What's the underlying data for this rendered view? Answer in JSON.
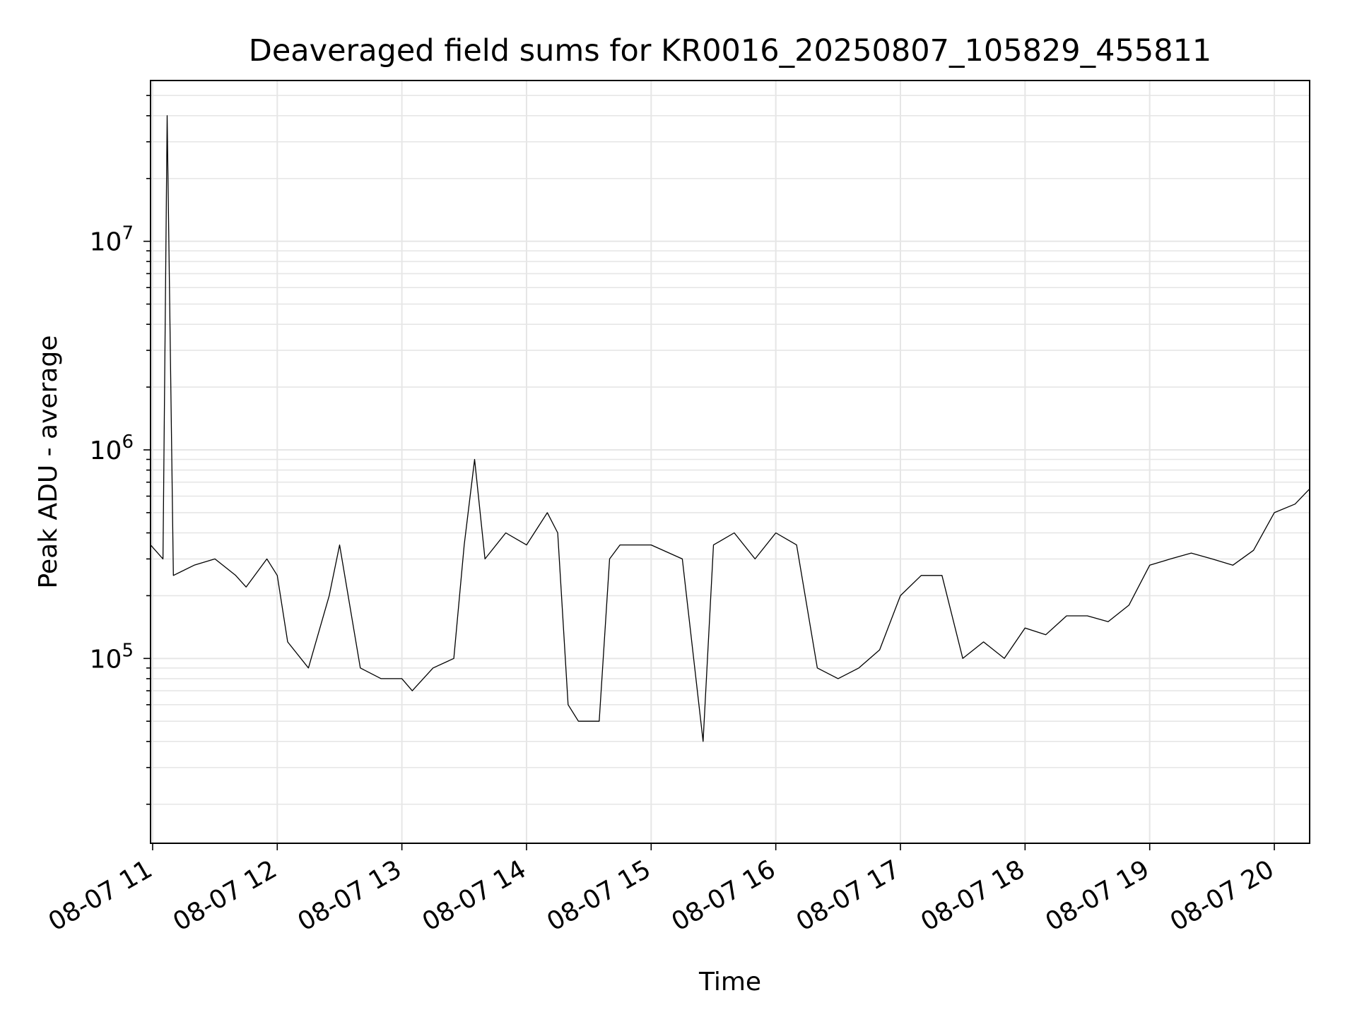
{
  "chart_data": {
    "type": "line",
    "title": "Deaveraged field sums for KR0016_20250807_105829_455811",
    "xlabel": "Time",
    "ylabel": "Peak ADU - average",
    "yscale": "log",
    "ylim": [
      13000,
      59000000
    ],
    "xlim": [
      "08-07 10:59",
      "08-07 20:17"
    ],
    "grid": true,
    "line_color": "#000000",
    "x_ticks": [
      "08-07 11",
      "08-07 12",
      "08-07 13",
      "08-07 14",
      "08-07 15",
      "08-07 16",
      "08-07 17",
      "08-07 18",
      "08-07 19",
      "08-07 20"
    ],
    "y_ticks": [
      {
        "base": "10",
        "exp": "5",
        "value": 100000
      },
      {
        "base": "10",
        "exp": "6",
        "value": 1000000
      },
      {
        "base": "10",
        "exp": "7",
        "value": 10000000
      }
    ],
    "series": [
      {
        "x": [
          "08-07 10:59",
          "08-07 11:05",
          "08-07 11:07",
          "08-07 11:10",
          "08-07 11:20",
          "08-07 11:30",
          "08-07 11:40",
          "08-07 11:45",
          "08-07 11:55",
          "08-07 12:00",
          "08-07 12:05",
          "08-07 12:15",
          "08-07 12:25",
          "08-07 12:30",
          "08-07 12:40",
          "08-07 12:50",
          "08-07 13:00",
          "08-07 13:05",
          "08-07 13:15",
          "08-07 13:25",
          "08-07 13:30",
          "08-07 13:35",
          "08-07 13:40",
          "08-07 13:50",
          "08-07 14:00",
          "08-07 14:10",
          "08-07 14:15",
          "08-07 14:20",
          "08-07 14:25",
          "08-07 14:35",
          "08-07 14:40",
          "08-07 14:45",
          "08-07 15:00",
          "08-07 15:15",
          "08-07 15:25",
          "08-07 15:30",
          "08-07 15:40",
          "08-07 15:50",
          "08-07 16:00",
          "08-07 16:10",
          "08-07 16:20",
          "08-07 16:30",
          "08-07 16:40",
          "08-07 16:50",
          "08-07 17:00",
          "08-07 17:10",
          "08-07 17:20",
          "08-07 17:30",
          "08-07 17:40",
          "08-07 17:50",
          "08-07 18:00",
          "08-07 18:10",
          "08-07 18:20",
          "08-07 18:30",
          "08-07 18:40",
          "08-07 18:50",
          "08-07 19:00",
          "08-07 19:10",
          "08-07 19:20",
          "08-07 19:30",
          "08-07 19:40",
          "08-07 19:50",
          "08-07 20:00",
          "08-07 20:10",
          "08-07 20:17"
        ],
        "y": [
          350000,
          300000,
          40000000,
          250000,
          280000,
          300000,
          250000,
          220000,
          300000,
          250000,
          120000,
          90000,
          200000,
          350000,
          90000,
          80000,
          80000,
          70000,
          90000,
          100000,
          350000,
          900000,
          300000,
          400000,
          350000,
          500000,
          400000,
          60000,
          50000,
          50000,
          300000,
          350000,
          350000,
          300000,
          40000,
          350000,
          400000,
          300000,
          400000,
          350000,
          90000,
          80000,
          90000,
          110000,
          200000,
          250000,
          250000,
          100000,
          120000,
          100000,
          140000,
          130000,
          160000,
          160000,
          150000,
          180000,
          280000,
          300000,
          320000,
          300000,
          280000,
          330000,
          500000,
          550000,
          650000
        ]
      }
    ]
  }
}
